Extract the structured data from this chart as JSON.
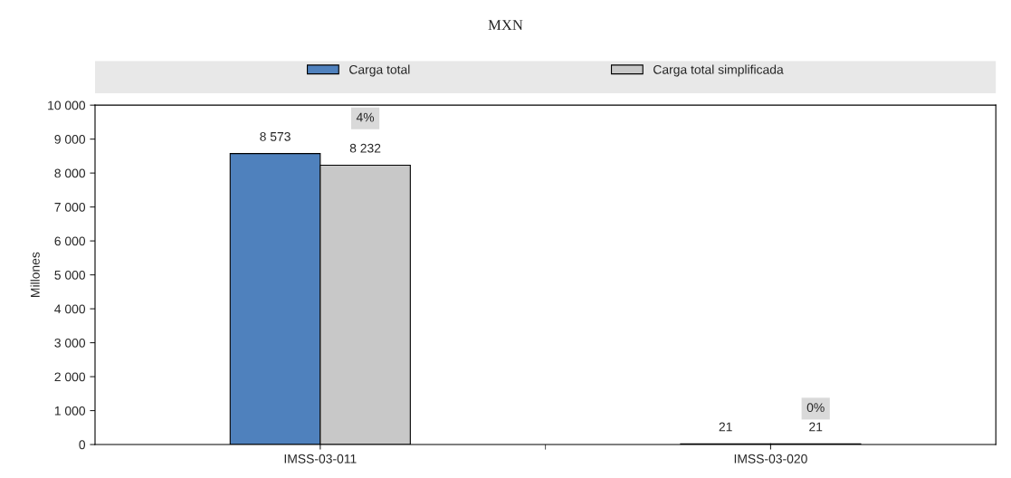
{
  "chart_data": {
    "type": "bar",
    "title": "MXN",
    "ylabel": "Millones",
    "categories": [
      "IMSS-03-011",
      "IMSS-03-020"
    ],
    "series": [
      {
        "name": "Carga total",
        "color": "#4f81bd",
        "values": [
          8573,
          21
        ],
        "value_labels": [
          "8 573",
          "21"
        ]
      },
      {
        "name": "Carga total simplificada",
        "color": "#c8c8c8",
        "values": [
          8232,
          21
        ],
        "value_labels": [
          "8 232",
          "21"
        ]
      }
    ],
    "annotations": [
      "4%",
      "0%"
    ],
    "ylim": [
      0,
      10000
    ],
    "yticks": [
      0,
      {
        "value": 1000,
        "label": "1 000"
      },
      {
        "value": 2000,
        "label": "2 000"
      },
      {
        "value": 3000,
        "label": "3 000"
      },
      {
        "value": 4000,
        "label": "4 000"
      },
      {
        "value": 5000,
        "label": "5 000"
      },
      {
        "value": 6000,
        "label": "6 000"
      },
      {
        "value": 7000,
        "label": "7 000"
      },
      {
        "value": 8000,
        "label": "8 000"
      },
      {
        "value": 9000,
        "label": "9 000"
      },
      {
        "value": 10000,
        "label": "10 000"
      }
    ],
    "legend": "top",
    "grid": false
  }
}
